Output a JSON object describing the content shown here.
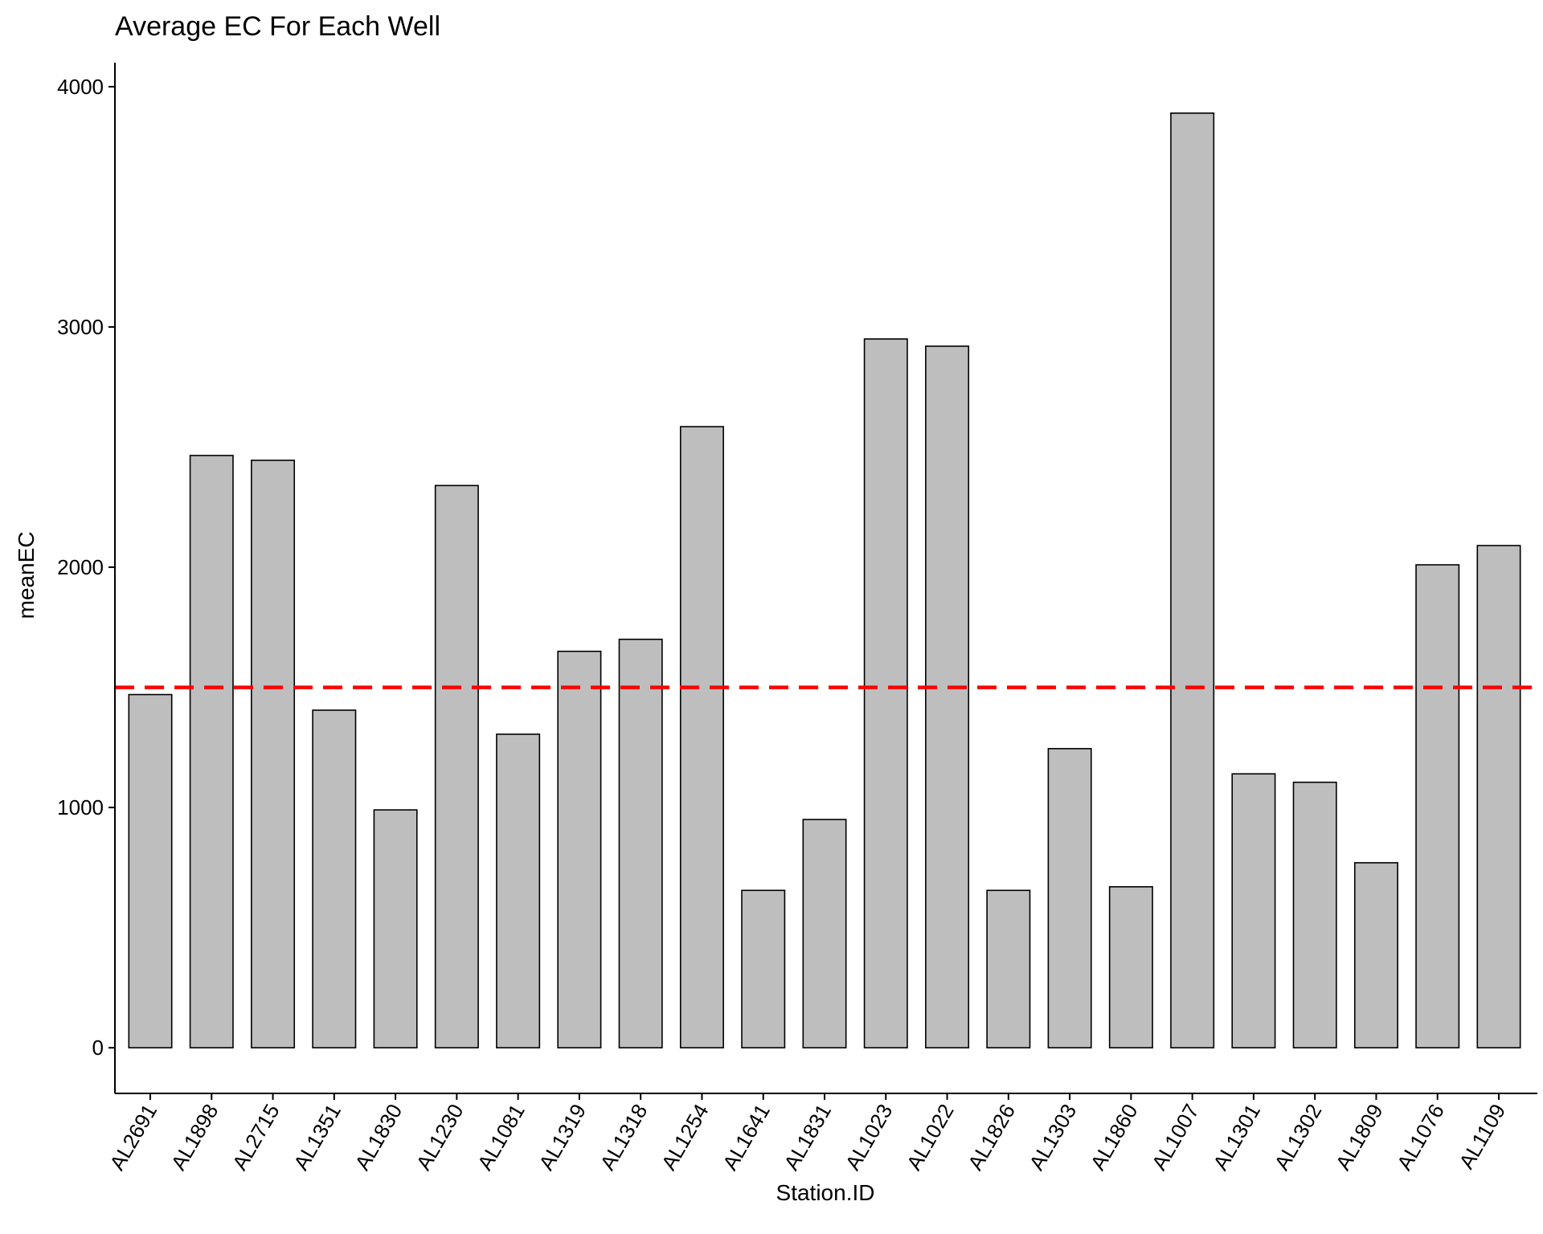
{
  "chart_data": {
    "type": "bar",
    "title": "Average EC For Each Well",
    "xlabel": "Station.ID",
    "ylabel": "meanEC",
    "categories": [
      "AL2691",
      "AL1898",
      "AL2715",
      "AL1351",
      "AL1830",
      "AL1230",
      "AL1081",
      "AL1319",
      "AL1318",
      "AL1254",
      "AL1641",
      "AL1831",
      "AL1023",
      "AL1022",
      "AL1826",
      "AL1303",
      "AL1860",
      "AL1007",
      "AL1301",
      "AL1302",
      "AL1809",
      "AL1076",
      "AL1109"
    ],
    "values": [
      1470,
      2465,
      2445,
      1405,
      990,
      2340,
      1305,
      1650,
      1700,
      2585,
      655,
      950,
      2950,
      2920,
      655,
      1245,
      670,
      3890,
      1140,
      1105,
      770,
      2010,
      2090
    ],
    "ylim": [
      -190,
      4100
    ],
    "yticks": [
      0,
      1000,
      2000,
      3000,
      4000
    ],
    "reference_line": {
      "value": 1500,
      "color": "#ff0000",
      "style": "dashed"
    },
    "bar_color": "#bebebe",
    "grid": false,
    "legend": "none"
  }
}
